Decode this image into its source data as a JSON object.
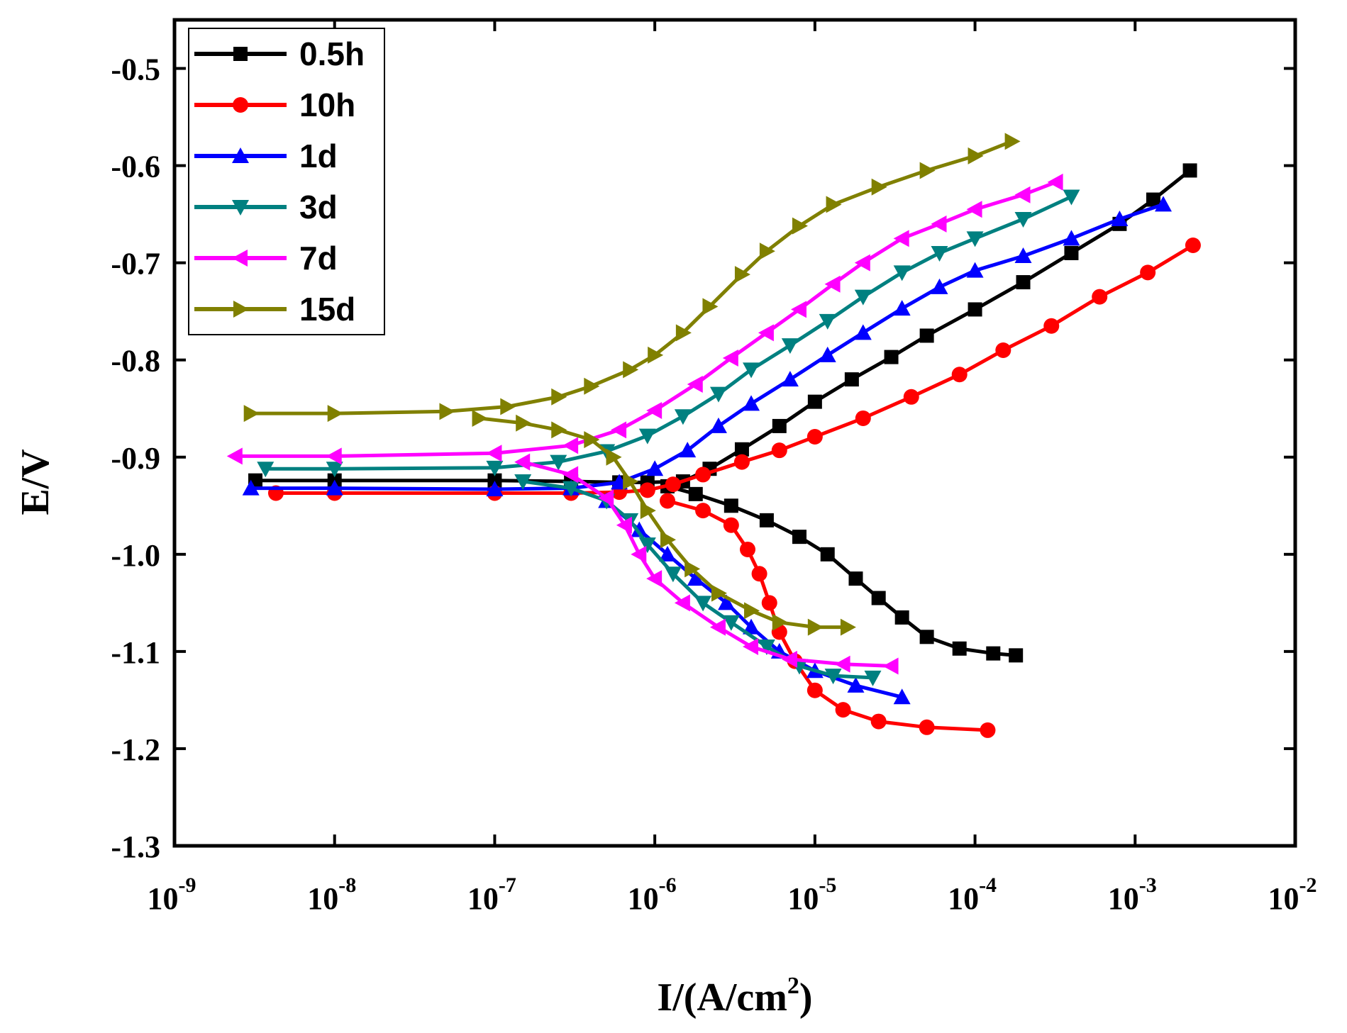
{
  "chart_data": {
    "type": "line",
    "title": "",
    "xlabel": "I/(A/cm",
    "xlabel_sup": "2",
    "xlabel_close": ")",
    "ylabel": "E/V",
    "x_scale": "log",
    "xlim": [
      1e-09,
      0.01
    ],
    "ylim": [
      -1.3,
      -0.45
    ],
    "x_ticks": [
      {
        "value": 1e-09,
        "base": "10",
        "exp": "-9"
      },
      {
        "value": 1e-08,
        "base": "10",
        "exp": "-8"
      },
      {
        "value": 1e-07,
        "base": "10",
        "exp": "-7"
      },
      {
        "value": 1e-06,
        "base": "10",
        "exp": "-6"
      },
      {
        "value": 1e-05,
        "base": "10",
        "exp": "-5"
      },
      {
        "value": 0.0001,
        "base": "10",
        "exp": "-4"
      },
      {
        "value": 0.001,
        "base": "10",
        "exp": "-3"
      },
      {
        "value": 0.01,
        "base": "10",
        "exp": "-2"
      }
    ],
    "y_ticks": [
      {
        "value": -0.5,
        "label": "-0.5"
      },
      {
        "value": -0.6,
        "label": "-0.6"
      },
      {
        "value": -0.7,
        "label": "-0.7"
      },
      {
        "value": -0.8,
        "label": "-0.8"
      },
      {
        "value": -0.9,
        "label": "-0.9"
      },
      {
        "value": -1.0,
        "label": "-1.0"
      },
      {
        "value": -1.1,
        "label": "-1.1"
      },
      {
        "value": -1.2,
        "label": "-1.2"
      },
      {
        "value": -1.3,
        "label": "-1.3"
      }
    ],
    "legend_position": "top-left",
    "series": [
      {
        "name": "0.5h",
        "color": "#000000",
        "marker": "square",
        "points": [
          [
            3.2e-09,
            -0.924
          ],
          [
            1e-08,
            -0.924
          ],
          [
            1e-07,
            -0.924
          ],
          [
            3e-07,
            -0.925
          ],
          [
            6e-07,
            -0.926
          ],
          [
            9e-07,
            -0.926
          ],
          [
            1.5e-06,
            -0.925
          ],
          [
            2.2e-06,
            -0.912
          ],
          [
            3.5e-06,
            -0.892
          ],
          [
            6e-06,
            -0.868
          ],
          [
            1e-05,
            -0.843
          ],
          [
            1.7e-05,
            -0.82
          ],
          [
            3e-05,
            -0.797
          ],
          [
            5e-05,
            -0.775
          ],
          [
            0.0001,
            -0.748
          ],
          [
            0.0002,
            -0.72
          ],
          [
            0.0004,
            -0.69
          ],
          [
            0.0008,
            -0.66
          ],
          [
            0.0013,
            -0.635
          ],
          [
            0.0022,
            -0.605
          ],
          [
            1.2e-06,
            -0.93
          ],
          [
            1.8e-06,
            -0.938
          ],
          [
            3e-06,
            -0.95
          ],
          [
            5e-06,
            -0.965
          ],
          [
            8e-06,
            -0.982
          ],
          [
            1.2e-05,
            -1.0
          ],
          [
            1.8e-05,
            -1.025
          ],
          [
            2.5e-05,
            -1.045
          ],
          [
            3.5e-05,
            -1.065
          ],
          [
            5e-05,
            -1.085
          ],
          [
            8e-05,
            -1.097
          ],
          [
            0.00013,
            -1.102
          ],
          [
            0.00018,
            -1.104
          ]
        ]
      },
      {
        "name": "10h",
        "color": "#ff0000",
        "marker": "circle",
        "points": [
          [
            4.3e-09,
            -0.937
          ],
          [
            1e-08,
            -0.937
          ],
          [
            1e-07,
            -0.937
          ],
          [
            3e-07,
            -0.937
          ],
          [
            6e-07,
            -0.936
          ],
          [
            9e-07,
            -0.934
          ],
          [
            1.3e-06,
            -0.928
          ],
          [
            2e-06,
            -0.918
          ],
          [
            3.5e-06,
            -0.905
          ],
          [
            6e-06,
            -0.893
          ],
          [
            1e-05,
            -0.879
          ],
          [
            2e-05,
            -0.86
          ],
          [
            4e-05,
            -0.838
          ],
          [
            8e-05,
            -0.815
          ],
          [
            0.00015,
            -0.79
          ],
          [
            0.0003,
            -0.765
          ],
          [
            0.0006,
            -0.735
          ],
          [
            0.0012,
            -0.71
          ],
          [
            0.0023,
            -0.682
          ],
          [
            1.2e-06,
            -0.945
          ],
          [
            2e-06,
            -0.955
          ],
          [
            3e-06,
            -0.97
          ],
          [
            3.8e-06,
            -0.995
          ],
          [
            4.5e-06,
            -1.02
          ],
          [
            5.2e-06,
            -1.05
          ],
          [
            6e-06,
            -1.08
          ],
          [
            7.5e-06,
            -1.11
          ],
          [
            1e-05,
            -1.14
          ],
          [
            1.5e-05,
            -1.16
          ],
          [
            2.5e-05,
            -1.172
          ],
          [
            5e-05,
            -1.178
          ],
          [
            0.00012,
            -1.181
          ]
        ]
      },
      {
        "name": "1d",
        "color": "#0000ff",
        "marker": "triangle-up",
        "points": [
          [
            3e-09,
            -0.932
          ],
          [
            1e-08,
            -0.932
          ],
          [
            1e-07,
            -0.933
          ],
          [
            3e-07,
            -0.932
          ],
          [
            6e-07,
            -0.926
          ],
          [
            1e-06,
            -0.912
          ],
          [
            1.6e-06,
            -0.893
          ],
          [
            2.5e-06,
            -0.868
          ],
          [
            4e-06,
            -0.845
          ],
          [
            7e-06,
            -0.82
          ],
          [
            1.2e-05,
            -0.795
          ],
          [
            2e-05,
            -0.772
          ],
          [
            3.5e-05,
            -0.747
          ],
          [
            6e-05,
            -0.725
          ],
          [
            0.0001,
            -0.708
          ],
          [
            0.0002,
            -0.693
          ],
          [
            0.0004,
            -0.675
          ],
          [
            0.0008,
            -0.655
          ],
          [
            0.0015,
            -0.64
          ],
          [
            5e-07,
            -0.945
          ],
          [
            8e-07,
            -0.975
          ],
          [
            1.2e-06,
            -1.0
          ],
          [
            1.8e-06,
            -1.025
          ],
          [
            2.8e-06,
            -1.05
          ],
          [
            4e-06,
            -1.075
          ],
          [
            6e-06,
            -1.1
          ],
          [
            1e-05,
            -1.12
          ],
          [
            1.8e-05,
            -1.135
          ],
          [
            3.5e-05,
            -1.147
          ]
        ]
      },
      {
        "name": "3d",
        "color": "#008080",
        "marker": "triangle-down",
        "points": [
          [
            3.7e-09,
            -0.912
          ],
          [
            1e-08,
            -0.912
          ],
          [
            1e-07,
            -0.911
          ],
          [
            2.5e-07,
            -0.905
          ],
          [
            5e-07,
            -0.894
          ],
          [
            9e-07,
            -0.878
          ],
          [
            1.5e-06,
            -0.858
          ],
          [
            2.5e-06,
            -0.835
          ],
          [
            4e-06,
            -0.81
          ],
          [
            7e-06,
            -0.785
          ],
          [
            1.2e-05,
            -0.76
          ],
          [
            2e-05,
            -0.735
          ],
          [
            3.5e-05,
            -0.71
          ],
          [
            6e-05,
            -0.69
          ],
          [
            0.0001,
            -0.675
          ],
          [
            0.0002,
            -0.655
          ],
          [
            0.0004,
            -0.632
          ],
          [
            1.5e-07,
            -0.925
          ],
          [
            3e-07,
            -0.932
          ],
          [
            5e-07,
            -0.945
          ],
          [
            7e-07,
            -0.965
          ],
          [
            9e-07,
            -0.99
          ],
          [
            1.3e-06,
            -1.02
          ],
          [
            2e-06,
            -1.05
          ],
          [
            3e-06,
            -1.07
          ],
          [
            5e-06,
            -1.095
          ],
          [
            8e-06,
            -1.115
          ],
          [
            1.3e-05,
            -1.125
          ],
          [
            2.3e-05,
            -1.127
          ]
        ]
      },
      {
        "name": "7d",
        "color": "#ff00ff",
        "marker": "triangle-left",
        "points": [
          [
            2.4e-09,
            -0.899
          ],
          [
            1e-08,
            -0.899
          ],
          [
            1e-07,
            -0.896
          ],
          [
            3e-07,
            -0.888
          ],
          [
            6e-07,
            -0.872
          ],
          [
            1e-06,
            -0.852
          ],
          [
            1.8e-06,
            -0.825
          ],
          [
            3e-06,
            -0.798
          ],
          [
            5e-06,
            -0.772
          ],
          [
            8e-06,
            -0.748
          ],
          [
            1.3e-05,
            -0.722
          ],
          [
            2e-05,
            -0.7
          ],
          [
            3.5e-05,
            -0.675
          ],
          [
            6e-05,
            -0.66
          ],
          [
            0.0001,
            -0.645
          ],
          [
            0.0002,
            -0.63
          ],
          [
            0.00032,
            -0.617
          ],
          [
            1.5e-07,
            -0.905
          ],
          [
            3e-07,
            -0.918
          ],
          [
            5e-07,
            -0.942
          ],
          [
            6.5e-07,
            -0.97
          ],
          [
            8e-07,
            -1.0
          ],
          [
            1e-06,
            -1.025
          ],
          [
            1.5e-06,
            -1.05
          ],
          [
            2.5e-06,
            -1.075
          ],
          [
            4e-06,
            -1.095
          ],
          [
            7e-06,
            -1.108
          ],
          [
            1.5e-05,
            -1.113
          ],
          [
            3e-05,
            -1.115
          ]
        ]
      },
      {
        "name": "15d",
        "color": "#808000",
        "marker": "triangle-right",
        "points": [
          [
            3e-09,
            -0.855
          ],
          [
            1e-08,
            -0.855
          ],
          [
            5e-08,
            -0.853
          ],
          [
            1.2e-07,
            -0.848
          ],
          [
            2.5e-07,
            -0.838
          ],
          [
            4e-07,
            -0.827
          ],
          [
            7e-07,
            -0.81
          ],
          [
            1e-06,
            -0.795
          ],
          [
            1.5e-06,
            -0.772
          ],
          [
            2.2e-06,
            -0.745
          ],
          [
            3.5e-06,
            -0.712
          ],
          [
            5e-06,
            -0.688
          ],
          [
            8e-06,
            -0.662
          ],
          [
            1.3e-05,
            -0.64
          ],
          [
            2.5e-05,
            -0.622
          ],
          [
            5e-05,
            -0.605
          ],
          [
            0.0001,
            -0.59
          ],
          [
            0.00017,
            -0.575
          ],
          [
            8e-08,
            -0.86
          ],
          [
            1.5e-07,
            -0.865
          ],
          [
            2.5e-07,
            -0.872
          ],
          [
            4e-07,
            -0.882
          ],
          [
            5.5e-07,
            -0.9
          ],
          [
            7e-07,
            -0.925
          ],
          [
            9e-07,
            -0.955
          ],
          [
            1.2e-06,
            -0.985
          ],
          [
            1.7e-06,
            -1.015
          ],
          [
            2.5e-06,
            -1.04
          ],
          [
            4e-06,
            -1.058
          ],
          [
            6e-06,
            -1.07
          ],
          [
            1e-05,
            -1.075
          ],
          [
            1.6e-05,
            -1.075
          ]
        ]
      }
    ]
  }
}
